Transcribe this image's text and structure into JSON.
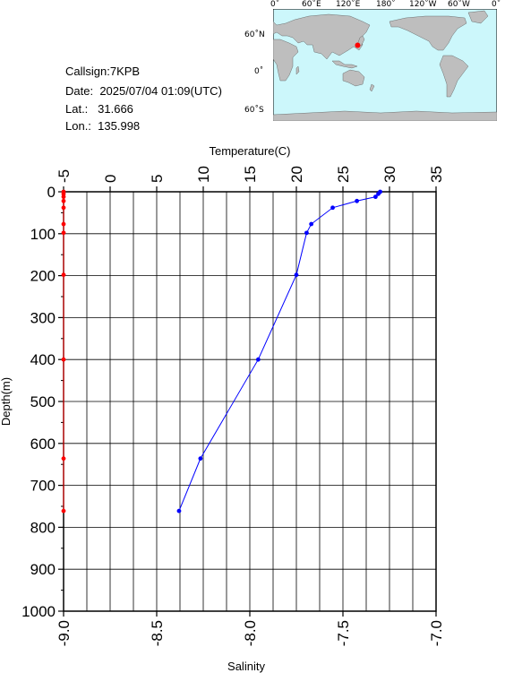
{
  "station": {
    "callsign_label": "Callsign:",
    "callsign": "7KPB",
    "date_label": "Date:",
    "date": "2025/07/04 01:09(UTC)",
    "lat_label": "Lat.:",
    "lat": "31.666",
    "lon_label": "Lon.:",
    "lon": "135.998"
  },
  "map": {
    "top_ticks": [
      "0˚",
      "60˚E",
      "120˚E",
      "180˚",
      "120˚W",
      "60˚W",
      "0˚"
    ],
    "lat_ticks": [
      "60˚N",
      "0˚",
      "60˚S"
    ],
    "ocean_color": "#ccf7fb",
    "land_color": "#bebebe",
    "marker_color": "#ff0000",
    "station_lon": 135.998,
    "station_lat": 31.666
  },
  "chart_data": {
    "type": "scatter",
    "ylabel": "Depth(m)",
    "ylim": [
      0,
      1000
    ],
    "y_ticks": [
      "0",
      "100",
      "200",
      "300",
      "400",
      "500",
      "600",
      "700",
      "800",
      "900",
      "1000"
    ],
    "grid": true,
    "top_axis": {
      "label": "Temperature(C)",
      "xlim": [
        -5,
        35
      ],
      "ticks": [
        "-5",
        "0",
        "5",
        "10",
        "15",
        "20",
        "25",
        "30",
        "35"
      ]
    },
    "bottom_axis": {
      "label": "Salinity",
      "xlim": [
        -9.0,
        -7.0
      ],
      "ticks": [
        "-9.0",
        "-8.5",
        "-8.0",
        "-7.5",
        "-7.0"
      ]
    },
    "series": [
      {
        "name": "Temperature",
        "color": "#0000ff",
        "axis": "top",
        "points": [
          [
            29.0,
            0
          ],
          [
            28.8,
            5
          ],
          [
            28.5,
            12
          ],
          [
            26.5,
            22
          ],
          [
            23.9,
            38
          ],
          [
            21.6,
            77
          ],
          [
            21.1,
            98
          ],
          [
            20.0,
            198
          ],
          [
            15.9,
            400
          ],
          [
            9.7,
            636
          ],
          [
            7.4,
            761
          ]
        ]
      },
      {
        "name": "Salinity",
        "color": "#ff0000",
        "axis": "bottom",
        "points": [
          [
            -9.0,
            0
          ],
          [
            -9.0,
            5
          ],
          [
            -9.0,
            12
          ],
          [
            -9.0,
            22
          ],
          [
            -9.0,
            38
          ],
          [
            -9.0,
            77
          ],
          [
            -9.0,
            98
          ],
          [
            -9.0,
            198
          ],
          [
            -9.0,
            400
          ],
          [
            -9.0,
            636
          ],
          [
            -9.0,
            761
          ]
        ]
      }
    ]
  }
}
